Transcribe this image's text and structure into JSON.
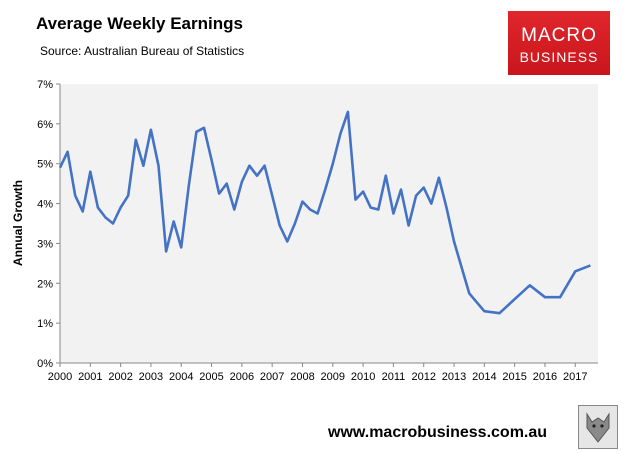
{
  "header": {
    "title": "Average Weekly Earnings",
    "source": "Source: Australian Bureau of Statistics"
  },
  "logo": {
    "line1": "MACRO",
    "line2": "BUSINESS",
    "color": "#d81e25"
  },
  "footer": {
    "website": "www.macrobusiness.com.au",
    "emblem_icon": "wolf-emblem-icon"
  },
  "chart_data": {
    "type": "line",
    "title": "Average Weekly Earnings",
    "ylabel": "Annual Growth",
    "xlabel": "",
    "xlim": [
      2000,
      2017.75
    ],
    "ylim": [
      0,
      7
    ],
    "x_ticks": [
      2000,
      2001,
      2002,
      2003,
      2004,
      2005,
      2006,
      2007,
      2008,
      2009,
      2010,
      2011,
      2012,
      2013,
      2014,
      2015,
      2016,
      2017
    ],
    "y_ticks": [
      "0%",
      "1%",
      "2%",
      "3%",
      "4%",
      "5%",
      "6%",
      "7%"
    ],
    "grid": false,
    "legend": "none",
    "line_color": "#4472c4",
    "plot_background": "#f2f2f2",
    "series": [
      {
        "x": [
          2000.0,
          2000.25,
          2000.5,
          2000.75,
          2001.0,
          2001.25,
          2001.5,
          2001.75,
          2002.0,
          2002.25,
          2002.5,
          2002.75,
          2003.0,
          2003.25,
          2003.5,
          2003.75,
          2004.0,
          2004.25,
          2004.5,
          2004.75,
          2005.0,
          2005.25,
          2005.5,
          2005.75,
          2006.0,
          2006.25,
          2006.5,
          2006.75,
          2007.0,
          2007.25,
          2007.5,
          2007.75,
          2008.0,
          2008.25,
          2008.5,
          2008.75,
          2009.0,
          2009.25,
          2009.5,
          2009.75,
          2010.0,
          2010.25,
          2010.5,
          2010.75,
          2011.0,
          2011.25,
          2011.5,
          2011.75,
          2012.0,
          2012.25,
          2012.5,
          2012.75,
          2013.0,
          2013.5,
          2014.0,
          2014.5,
          2015.0,
          2015.5,
          2016.0,
          2016.5,
          2017.0,
          2017.5
        ],
        "values": [
          4.9,
          5.3,
          4.2,
          3.8,
          4.8,
          3.9,
          3.65,
          3.5,
          3.9,
          4.2,
          5.6,
          4.95,
          5.85,
          4.95,
          2.8,
          3.55,
          2.9,
          4.45,
          5.8,
          5.9,
          5.1,
          4.25,
          4.5,
          3.85,
          4.55,
          4.95,
          4.7,
          4.95,
          4.2,
          3.45,
          3.05,
          3.5,
          4.05,
          3.85,
          3.75,
          4.35,
          5.0,
          5.75,
          6.3,
          4.1,
          4.3,
          3.9,
          3.85,
          4.7,
          3.75,
          4.35,
          3.45,
          4.2,
          4.4,
          4.0,
          4.65,
          3.9,
          3.05,
          1.75,
          1.3,
          1.25,
          1.6,
          1.95,
          1.65,
          1.65,
          2.3,
          2.45
        ]
      }
    ]
  }
}
